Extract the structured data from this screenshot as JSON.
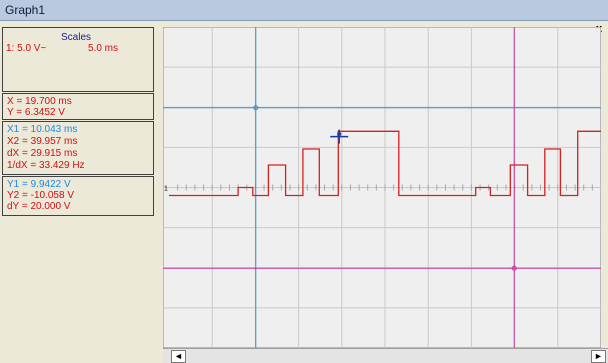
{
  "window": {
    "title": "Graph1",
    "close_glyph": "x"
  },
  "scales": {
    "heading": "Scales",
    "channel": "1: 5.0 V~",
    "time": "5.0 ms"
  },
  "cursor": {
    "x": "X = 19.700 ms",
    "y": "Y = 6.3452 V"
  },
  "x_cursors": {
    "x1": "X1 = 10.043 ms",
    "x2": "X2 = 39.957 ms",
    "dx": "dX = 29.915 ms",
    "inv_dx": "1/dX = 33.429 Hz"
  },
  "y_cursors": {
    "y1": "Y1 = 9.9422 V",
    "y2": "Y2 = -10.058 V",
    "dy": "dY = 20.000 V"
  },
  "channel_marker": "1",
  "scroll": {
    "left_glyph": "◄",
    "right_glyph": "►"
  },
  "colors": {
    "trace": "#d32020",
    "cursor_blue": "#3c8fc8",
    "cursor_magenta": "#c0339c",
    "grid": "#c9c9c9",
    "plot_bg": "#efefef"
  },
  "chart_data": {
    "type": "line",
    "xlim": [
      0,
      50
    ],
    "ylim": [
      -20,
      20
    ],
    "grid": true,
    "trace_color": "#d32020",
    "waveform": {
      "x": [
        0,
        8,
        8,
        9.7,
        9.7,
        11.5,
        11.5,
        13.5,
        13.5,
        15.5,
        15.5,
        17.4,
        17.4,
        19.6,
        19.6,
        26.6,
        26.6,
        35.5,
        35.5,
        37.2,
        37.2,
        39.5,
        39.5,
        41.5,
        41.5,
        43.5,
        43.5,
        45.3,
        45.3,
        47.3,
        47.3,
        50
      ],
      "y": [
        -1,
        -1,
        0,
        0,
        -1,
        -1,
        2.8,
        2.8,
        -1,
        -1,
        4.8,
        4.8,
        -1,
        -1,
        7,
        7,
        -1,
        -1,
        0,
        0,
        -1,
        -1,
        2.8,
        2.8,
        -1,
        -1,
        4.8,
        4.8,
        -1,
        -1,
        7,
        7
      ]
    },
    "cursors": {
      "x1": 10.043,
      "x2": 39.957,
      "y1": 9.9422,
      "y2": -10.058,
      "point": [
        19.7,
        6.3452
      ]
    }
  }
}
